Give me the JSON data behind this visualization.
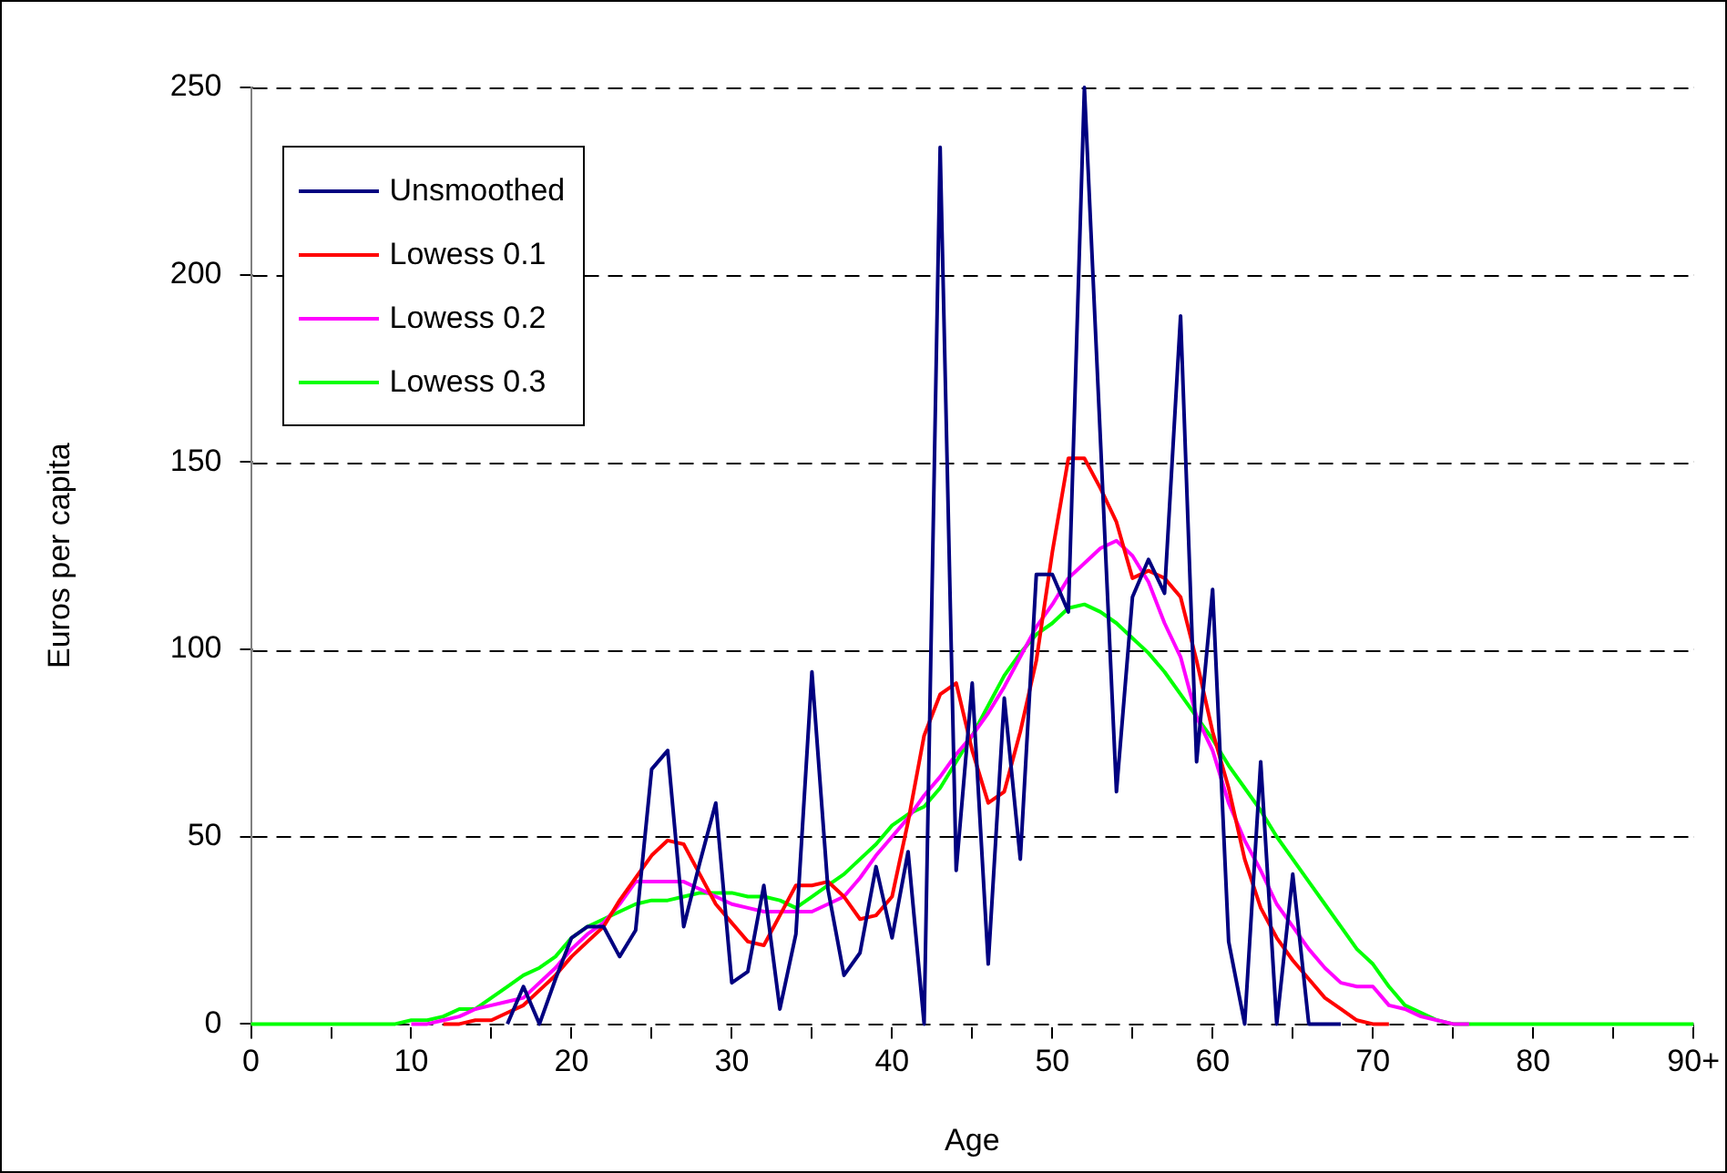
{
  "chart_data": {
    "type": "line",
    "xlabel": "Age",
    "ylabel": "Euros per capita",
    "categories": [
      "0",
      null,
      null,
      null,
      null,
      null,
      null,
      null,
      null,
      null,
      "10",
      null,
      null,
      null,
      null,
      null,
      null,
      null,
      null,
      null,
      "20",
      null,
      null,
      null,
      null,
      null,
      null,
      null,
      null,
      null,
      "30",
      null,
      null,
      null,
      null,
      null,
      null,
      null,
      null,
      null,
      "40",
      null,
      null,
      null,
      null,
      null,
      null,
      null,
      null,
      null,
      "50",
      null,
      null,
      null,
      null,
      null,
      null,
      null,
      null,
      null,
      "60",
      null,
      null,
      null,
      null,
      null,
      null,
      null,
      null,
      null,
      "70",
      null,
      null,
      null,
      null,
      null,
      null,
      null,
      null,
      null,
      "80",
      null,
      null,
      null,
      null,
      null,
      null,
      null,
      null,
      null,
      "90+"
    ],
    "ylim": [
      0,
      250
    ],
    "yticks": [
      0,
      50,
      100,
      150,
      200,
      250
    ],
    "grid": "y",
    "legend": "top left",
    "marker": "none",
    "line_style": "solid",
    "series": [
      {
        "name": "Unsmoothed",
        "color": "#000080",
        "values": [
          null,
          null,
          null,
          null,
          null,
          null,
          null,
          null,
          null,
          null,
          null,
          null,
          null,
          null,
          null,
          null,
          0,
          10,
          0,
          12,
          23,
          26,
          26,
          18,
          25,
          68,
          73,
          26,
          43,
          59,
          11,
          14,
          37,
          4,
          24,
          94,
          36,
          13,
          19,
          42,
          23,
          46,
          0,
          234,
          41,
          91,
          16,
          87,
          44,
          120,
          120,
          110,
          250,
          156,
          62,
          114,
          124,
          115,
          189,
          70,
          116,
          22,
          0,
          70,
          0,
          40,
          0,
          0,
          0,
          null,
          null,
          null,
          null,
          null,
          null,
          null,
          null,
          null,
          null,
          null,
          null,
          null,
          null,
          null,
          null,
          null,
          null,
          null,
          null,
          null,
          null
        ]
      },
      {
        "name": "Lowess 0.1",
        "color": "#ff0000",
        "values": [
          null,
          null,
          null,
          null,
          null,
          null,
          null,
          null,
          null,
          null,
          null,
          null,
          0,
          0,
          1,
          1,
          3,
          5,
          9,
          13,
          18,
          22,
          26,
          33,
          39,
          45,
          49,
          48,
          40,
          32,
          27,
          22,
          21,
          29,
          37,
          37,
          38,
          34,
          28,
          29,
          34,
          54,
          77,
          88,
          91,
          73,
          59,
          62,
          78,
          97,
          126,
          151,
          151,
          143,
          134,
          119,
          121,
          119,
          114,
          97,
          78,
          63,
          44,
          31,
          23,
          17,
          12,
          7,
          4,
          1,
          0,
          0,
          null,
          null,
          null,
          null,
          null,
          null,
          null,
          null,
          null,
          null,
          null,
          null,
          null,
          null,
          null,
          null,
          null,
          null,
          null
        ]
      },
      {
        "name": "Lowess 0.2",
        "color": "#ff00ff",
        "values": [
          null,
          null,
          null,
          null,
          null,
          null,
          null,
          null,
          null,
          null,
          0,
          0,
          1,
          2,
          4,
          5,
          6,
          7,
          11,
          15,
          20,
          24,
          27,
          32,
          38,
          38,
          38,
          38,
          36,
          34,
          32,
          31,
          30,
          30,
          30,
          30,
          32,
          34,
          39,
          45,
          50,
          55,
          61,
          66,
          72,
          77,
          83,
          90,
          98,
          106,
          112,
          119,
          123,
          127,
          129,
          125,
          118,
          107,
          98,
          82,
          73,
          59,
          49,
          41,
          32,
          26,
          20,
          15,
          11,
          10,
          10,
          5,
          4,
          2,
          1,
          0,
          0,
          null,
          null,
          null,
          null,
          null,
          null,
          null,
          null,
          null,
          null,
          null,
          null,
          null,
          null
        ]
      },
      {
        "name": "Lowess 0.3",
        "color": "#00ff00",
        "values": [
          0,
          0,
          0,
          0,
          0,
          0,
          0,
          0,
          0,
          0,
          1,
          1,
          2,
          4,
          4,
          7,
          10,
          13,
          15,
          18,
          23,
          26,
          28,
          30,
          32,
          33,
          33,
          34,
          35,
          35,
          35,
          34,
          34,
          33,
          31,
          34,
          37,
          40,
          44,
          48,
          53,
          56,
          58,
          63,
          70,
          77,
          85,
          93,
          99,
          104,
          107,
          111,
          112,
          110,
          107,
          103,
          99,
          94,
          88,
          82,
          76,
          69,
          63,
          57,
          50,
          44,
          38,
          32,
          26,
          20,
          16,
          10,
          5,
          3,
          1,
          0,
          0,
          0,
          0,
          0,
          0,
          0,
          0,
          0,
          0,
          0,
          0,
          0,
          0,
          0,
          0
        ]
      }
    ]
  }
}
